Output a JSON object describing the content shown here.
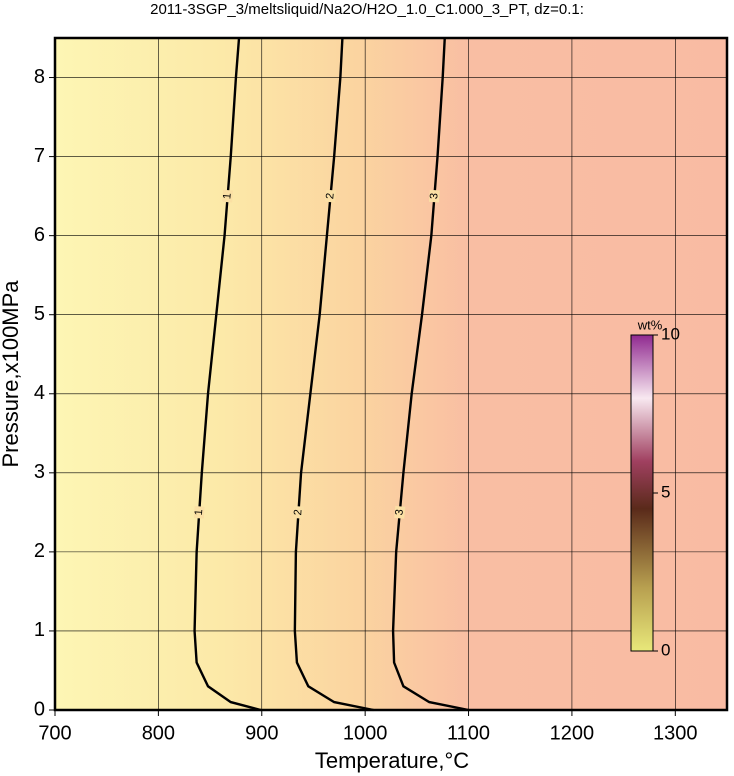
{
  "chart_data": {
    "type": "contour",
    "title": "2011-3SGP_3/meltsliquid/Na2O/H2O_1.0_C1.000_3_PT, dz=0.1:",
    "x_label": "Temperature,°C",
    "y_label": "Pressure,x100MPa",
    "xlim": [
      700,
      1350
    ],
    "ylim": [
      0,
      8.5
    ],
    "xticks": [
      700,
      800,
      900,
      1000,
      1100,
      1200,
      1300
    ],
    "yticks": [
      0,
      1,
      2,
      3,
      4,
      5,
      6,
      7,
      8
    ],
    "grid": true,
    "contours": [
      {
        "label": "1",
        "color": "#000000",
        "x": [
          899,
          870,
          848,
          837,
          835,
          837,
          842,
          848,
          856,
          864,
          870,
          875,
          878
        ],
        "y": [
          0,
          0.1,
          0.3,
          0.6,
          1,
          2,
          3,
          4,
          5,
          6,
          7,
          8,
          8.5
        ]
      },
      {
        "label": "2",
        "color": "#000000",
        "x": [
          1008,
          970,
          945,
          934,
          932,
          933,
          938,
          947,
          956,
          963,
          970,
          976,
          978
        ],
        "y": [
          0,
          0.1,
          0.3,
          0.6,
          1,
          2,
          3,
          4,
          5,
          6,
          7,
          8,
          8.5
        ]
      },
      {
        "label": "3",
        "color": "#000000",
        "x": [
          1100,
          1062,
          1037,
          1028,
          1027,
          1030,
          1037,
          1045,
          1055,
          1064,
          1070,
          1075,
          1077
        ],
        "y": [
          0,
          0.1,
          0.3,
          0.6,
          1,
          2,
          3,
          4,
          5,
          6,
          7,
          8,
          8.5
        ]
      }
    ],
    "colorbar": {
      "label": "wt%",
      "lim": [
        0,
        10
      ],
      "ticks": [
        0,
        5,
        10
      ]
    }
  }
}
